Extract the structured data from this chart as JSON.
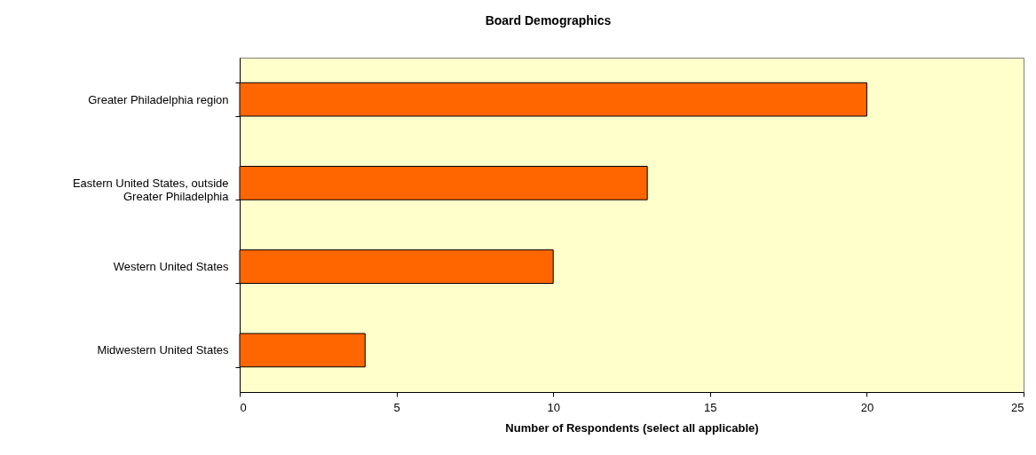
{
  "chart_data": {
    "type": "bar",
    "orientation": "horizontal",
    "title": "Board Demographics",
    "xlabel": "Number of Respondents (select all applicable)",
    "categories": [
      "Greater Philadelphia region",
      "Eastern United States, outside Greater Philadelphia",
      "Western United States",
      "Midwestern United States"
    ],
    "values": [
      20,
      13,
      10,
      4
    ],
    "color": "#ff6600",
    "xlim": [
      0,
      25
    ],
    "xticks": [
      0,
      5,
      10,
      15,
      20,
      25
    ],
    "grid": false
  }
}
